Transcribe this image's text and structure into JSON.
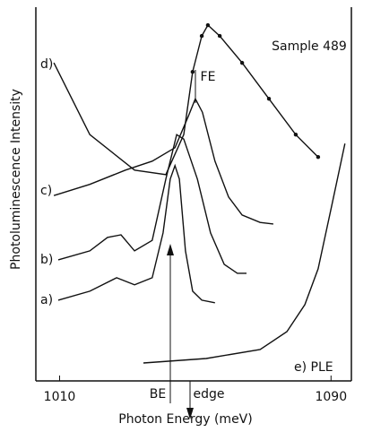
{
  "chart_data": {
    "type": "line",
    "annotations": [
      "Sample 489",
      "FE",
      "BE",
      "edge"
    ],
    "xlabel": "Photon Energy (meV)",
    "ylabel": "Photoluminescence Intensity",
    "xlim": [
      1003,
      1096
    ],
    "xticks": [
      1010,
      1090
    ],
    "ylim": [
      0,
      100
    ],
    "color": "#111111",
    "series": [
      {
        "name": "a)",
        "x": [
          1009.6,
          1018.9,
          1026.8,
          1032.1,
          1037.3,
          1040.5,
          1042.6,
          1044.0,
          1045.3,
          1047.1,
          1049.2,
          1051.9,
          1055.8
        ],
        "values": [
          21.6,
          24.0,
          27.6,
          25.7,
          27.6,
          39.6,
          54.0,
          57.6,
          54.0,
          34.8,
          24.0,
          21.6,
          20.9
        ]
      },
      {
        "name": "b)",
        "x": [
          1009.6,
          1018.9,
          1024.1,
          1028.1,
          1032.1,
          1037.3,
          1041.3,
          1044.5,
          1046.6,
          1050.6,
          1054.5,
          1058.5,
          1062.4,
          1065.1
        ],
        "values": [
          32.4,
          34.8,
          38.4,
          39.1,
          34.8,
          37.6,
          54.0,
          65.9,
          64.7,
          54.0,
          39.6,
          31.2,
          28.8,
          28.8
        ]
      },
      {
        "name": "c)",
        "x": [
          1008.3,
          1018.9,
          1029.4,
          1037.3,
          1044.0,
          1047.9,
          1050.0,
          1052.1,
          1055.8,
          1059.8,
          1063.8,
          1069.1,
          1073.0
        ],
        "values": [
          49.6,
          52.6,
          56.4,
          58.8,
          62.4,
          70.7,
          75.5,
          71.9,
          58.8,
          49.2,
          44.4,
          42.4,
          42.0
        ]
      },
      {
        "name": "d)",
        "x": [
          1008.3,
          1018.9,
          1032.1,
          1041.3,
          1046.6,
          1049.2,
          1051.9,
          1053.7,
          1057.2,
          1063.8,
          1071.7,
          1079.6,
          1086.2
        ],
        "values": [
          85.1,
          65.9,
          56.4,
          55.2,
          65.9,
          82.7,
          92.3,
          95.2,
          92.3,
          85.1,
          75.5,
          65.9,
          59.9
        ]
      },
      {
        "name": "e) PLE",
        "x": [
          1034.7,
          1053.2,
          1069.1,
          1077.0,
          1082.3,
          1086.2,
          1090.2,
          1094.1
        ],
        "values": [
          4.8,
          6.0,
          8.4,
          13.2,
          20.4,
          30.0,
          46.8,
          63.5
        ]
      }
    ]
  }
}
